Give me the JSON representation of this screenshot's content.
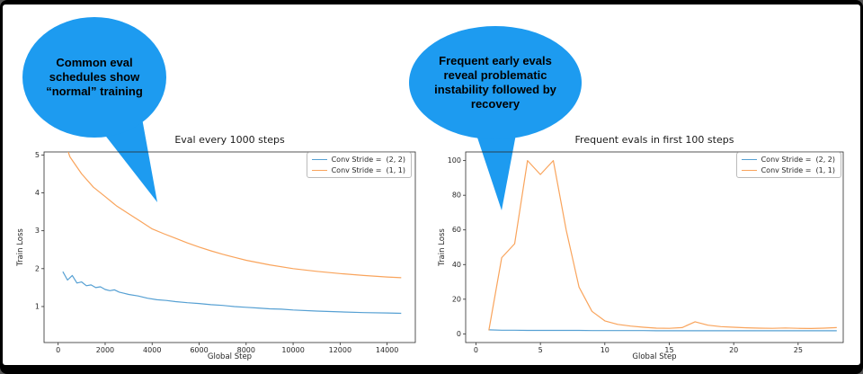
{
  "frame": {
    "background": "#000000",
    "slide_background": "#ffffff"
  },
  "callouts": [
    {
      "text": "Common eval schedules show “normal” training",
      "fill": "#1d9bf0",
      "text_color": "#000000"
    },
    {
      "text": "Frequent early evals reveal problematic instability followed by recovery",
      "fill": "#1d9bf0",
      "text_color": "#000000"
    }
  ],
  "chart_data": [
    {
      "type": "line",
      "title": "Eval every 1000 steps",
      "xlabel": "Global Step",
      "ylabel": "Train Loss",
      "xlim": [
        -600,
        15200
      ],
      "ylim": [
        0.05,
        5.08
      ],
      "xticks": [
        0,
        2000,
        4000,
        6000,
        8000,
        10000,
        12000,
        14000
      ],
      "yticks": [
        1,
        2,
        3,
        4,
        5
      ],
      "grid": false,
      "legend_position": "upper right",
      "series": [
        {
          "name": "Conv Stride =  (2, 2)",
          "color": "#56a0d3",
          "x": [
            200,
            400,
            600,
            800,
            1000,
            1200,
            1400,
            1600,
            1800,
            2000,
            2200,
            2400,
            2600,
            2800,
            3000,
            3400,
            3800,
            4200,
            4600,
            5000,
            5500,
            6000,
            6500,
            7000,
            7500,
            8000,
            8500,
            9000,
            9500,
            10000,
            11000,
            12000,
            13000,
            14000,
            14600
          ],
          "y": [
            1.92,
            1.7,
            1.82,
            1.62,
            1.65,
            1.55,
            1.57,
            1.5,
            1.52,
            1.45,
            1.42,
            1.44,
            1.38,
            1.35,
            1.32,
            1.28,
            1.22,
            1.18,
            1.16,
            1.13,
            1.1,
            1.08,
            1.05,
            1.03,
            1.0,
            0.98,
            0.96,
            0.94,
            0.93,
            0.91,
            0.88,
            0.86,
            0.84,
            0.83,
            0.82
          ]
        },
        {
          "name": "Conv Stride =  (1, 1)",
          "color": "#f9a45c",
          "x": [
            200,
            500,
            1000,
            1500,
            2000,
            2500,
            3000,
            3500,
            4000,
            4500,
            5000,
            5500,
            6000,
            6500,
            7000,
            7500,
            8000,
            9000,
            10000,
            11000,
            12000,
            13000,
            14000,
            14600
          ],
          "y": [
            5.5,
            4.95,
            4.5,
            4.15,
            3.9,
            3.65,
            3.45,
            3.25,
            3.05,
            2.92,
            2.8,
            2.68,
            2.57,
            2.47,
            2.38,
            2.3,
            2.22,
            2.1,
            2.0,
            1.93,
            1.87,
            1.82,
            1.78,
            1.76
          ]
        }
      ]
    },
    {
      "type": "line",
      "title": "Frequent evals in first 100 steps",
      "xlabel": "Global Step",
      "ylabel": "Train Loss",
      "xlim": [
        -0.8,
        28.5
      ],
      "ylim": [
        -5,
        105
      ],
      "xticks": [
        0,
        5,
        10,
        15,
        20,
        25
      ],
      "yticks": [
        0,
        20,
        40,
        60,
        80,
        100
      ],
      "grid": false,
      "legend_position": "upper right",
      "series": [
        {
          "name": "Conv Stride =  (2, 2)",
          "color": "#56a0d3",
          "x": [
            1,
            2,
            3,
            4,
            5,
            6,
            7,
            8,
            9,
            10,
            11,
            12,
            13,
            14,
            15,
            16,
            17,
            18,
            19,
            20,
            21,
            22,
            23,
            24,
            25,
            26,
            27,
            28
          ],
          "y": [
            2.3,
            2.1,
            2.1,
            2.0,
            2.0,
            2.0,
            2.0,
            2.0,
            1.9,
            1.9,
            1.9,
            1.9,
            1.9,
            1.8,
            1.8,
            1.8,
            1.8,
            1.8,
            1.8,
            1.8,
            1.8,
            1.8,
            1.8,
            1.8,
            1.8,
            1.8,
            1.8,
            1.8
          ]
        },
        {
          "name": "Conv Stride =  (1, 1)",
          "color": "#f9a45c",
          "x": [
            1,
            2,
            3,
            4,
            5,
            6,
            7,
            8,
            9,
            10,
            11,
            12,
            13,
            14,
            15,
            16,
            17,
            18,
            19,
            20,
            21,
            22,
            23,
            24,
            25,
            26,
            27,
            28
          ],
          "y": [
            2.0,
            44,
            52,
            100,
            92,
            100,
            60,
            27,
            13,
            7.5,
            5.5,
            4.5,
            3.8,
            3.3,
            3.2,
            3.6,
            7.0,
            5.0,
            4.2,
            3.8,
            3.5,
            3.3,
            3.2,
            3.4,
            3.2,
            3.1,
            3.3,
            3.6
          ]
        }
      ]
    }
  ]
}
